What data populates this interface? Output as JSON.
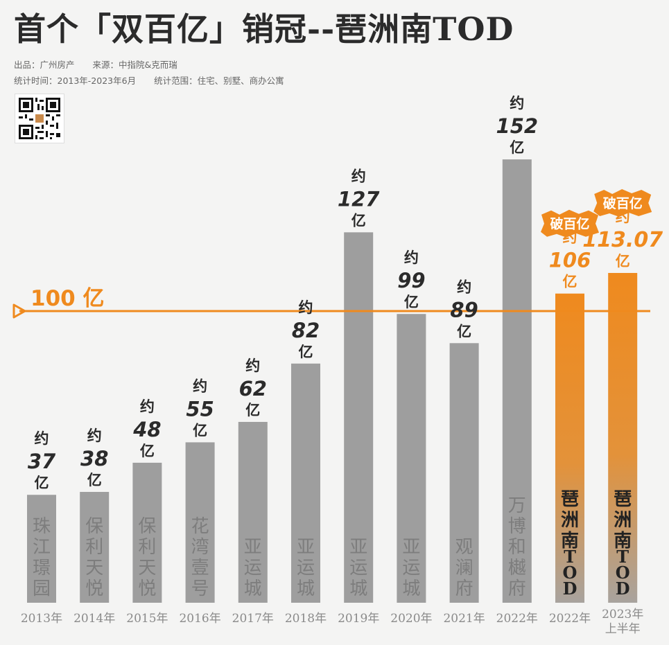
{
  "header": {
    "title": "首个「双百亿」销冠--琶洲南TOD",
    "publisher": "出品：广州房产",
    "source": "来源：中指院&克而瑞",
    "period": "统计时间：2013年-2023年6月",
    "scope": "统计范围：住宅、别墅、商办公寓"
  },
  "reference_line": {
    "label": "100 亿",
    "value": 100
  },
  "badges": {
    "break_100": "破百亿"
  },
  "labels": {
    "approx": "约",
    "unit": "亿"
  },
  "colors": {
    "gray_bar": "#9e9e9e",
    "highlight": "#ef8a1e",
    "line": "#ef8a1e",
    "text": "#2b2b2b"
  },
  "chart_data": {
    "type": "bar",
    "title": "首个「双百亿」销冠--琶洲南TOD",
    "unit": "亿",
    "ylim": [
      0,
      160
    ],
    "reference_value": 100,
    "bars": [
      {
        "year": "2013年",
        "project": "珠江璟园",
        "value": 37,
        "value_text": "37",
        "highlight": false
      },
      {
        "year": "2014年",
        "project": "保利天悦",
        "value": 38,
        "value_text": "38",
        "highlight": false
      },
      {
        "year": "2015年",
        "project": "保利天悦",
        "value": 48,
        "value_text": "48",
        "highlight": false
      },
      {
        "year": "2016年",
        "project": "花湾壹号",
        "value": 55,
        "value_text": "55",
        "highlight": false
      },
      {
        "year": "2017年",
        "project": "亚运城",
        "value": 62,
        "value_text": "62",
        "highlight": false
      },
      {
        "year": "2018年",
        "project": "亚运城",
        "value": 82,
        "value_text": "82",
        "highlight": false
      },
      {
        "year": "2019年",
        "project": "亚运城",
        "value": 127,
        "value_text": "127",
        "highlight": false
      },
      {
        "year": "2020年",
        "project": "亚运城",
        "value": 99,
        "value_text": "99",
        "highlight": false
      },
      {
        "year": "2021年",
        "project": "观澜府",
        "value": 89,
        "value_text": "89",
        "highlight": false
      },
      {
        "year": "2022年",
        "project": "万博和樾府",
        "value": 152,
        "value_text": "152",
        "highlight": false
      },
      {
        "year": "2022年",
        "project": "琶洲南TOD",
        "value": 106,
        "value_text": "106",
        "highlight": true
      },
      {
        "year": "2023年上半年",
        "project": "琶洲南TOD",
        "value": 113.07,
        "value_text": "113.07",
        "highlight": true
      }
    ]
  }
}
